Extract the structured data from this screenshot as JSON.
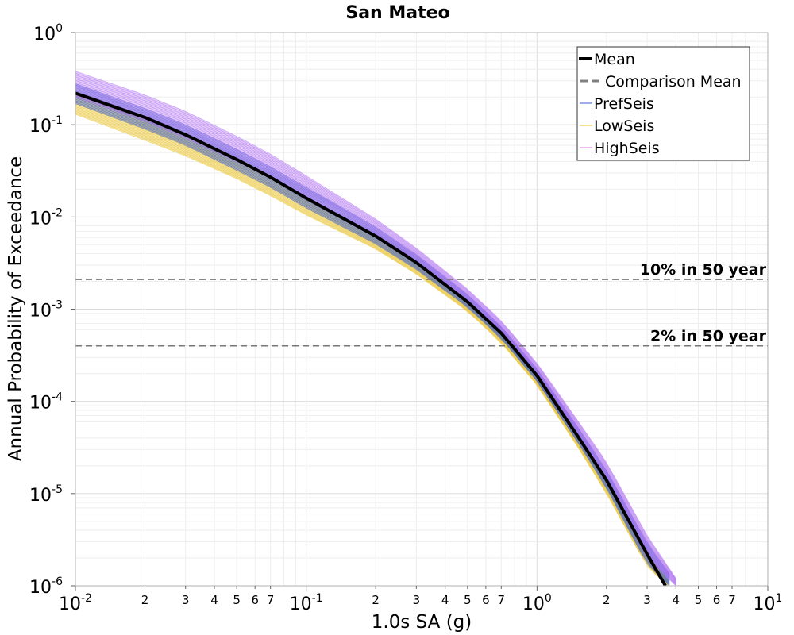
{
  "chart_data": {
    "type": "line",
    "title": "San Mateo",
    "xlabel": "1.0s SA (g)",
    "ylabel": "Annual Probability of Exceedance",
    "xscale": "log",
    "yscale": "log",
    "xlim": [
      0.01,
      10
    ],
    "ylim": [
      1e-06,
      1
    ],
    "grid": true,
    "legend_position": "top-right",
    "x_major_ticks": [
      {
        "value": 0.01,
        "base": "10",
        "exp": "-2"
      },
      {
        "value": 0.1,
        "base": "10",
        "exp": "-1"
      },
      {
        "value": 1,
        "base": "10",
        "exp": "0"
      },
      {
        "value": 10,
        "base": "10",
        "exp": "1"
      }
    ],
    "x_minor_labels": [
      "2",
      "3",
      "4",
      "5",
      "6",
      "7"
    ],
    "y_major_ticks": [
      {
        "value": 1,
        "base": "10",
        "exp": "0"
      },
      {
        "value": 0.1,
        "base": "10",
        "exp": "-1"
      },
      {
        "value": 0.01,
        "base": "10",
        "exp": "-2"
      },
      {
        "value": 0.001,
        "base": "10",
        "exp": "-3"
      },
      {
        "value": 0.0001,
        "base": "10",
        "exp": "-4"
      },
      {
        "value": 1e-05,
        "base": "10",
        "exp": "-5"
      },
      {
        "value": 1e-06,
        "base": "10",
        "exp": "-6"
      }
    ],
    "mean": {
      "name": "Mean",
      "color": "#000000",
      "x": [
        0.01,
        0.02,
        0.03,
        0.05,
        0.07,
        0.1,
        0.2,
        0.3,
        0.5,
        0.7,
        1.0,
        1.5,
        2.0,
        3.0,
        3.6
      ],
      "y": [
        0.22,
        0.12,
        0.078,
        0.042,
        0.027,
        0.016,
        0.0062,
        0.0032,
        0.0012,
        0.00055,
        0.00019,
        4.2e-05,
        1.4e-05,
        2.2e-06,
        1e-06
      ]
    },
    "comparison_mean": {
      "name": "Comparison Mean",
      "color": "#808080",
      "dash": true
    },
    "branch_bands": [
      {
        "name": "PrefSeis",
        "color": "#3a5fd0",
        "x": [
          0.01,
          0.02,
          0.03,
          0.05,
          0.07,
          0.1,
          0.2,
          0.3,
          0.5,
          0.7,
          1.0,
          1.5,
          2.0,
          3.0,
          3.75
        ],
        "lower": [
          0.17,
          0.09,
          0.06,
          0.032,
          0.021,
          0.0125,
          0.0051,
          0.0027,
          0.00105,
          0.00048,
          0.000165,
          3.6e-05,
          1.15e-05,
          1.7e-06,
          1e-06
        ],
        "upper": [
          0.28,
          0.15,
          0.1,
          0.054,
          0.035,
          0.021,
          0.0078,
          0.0039,
          0.00145,
          0.00065,
          0.000225,
          5.3e-05,
          1.8e-05,
          2.9e-06,
          1.35e-06
        ]
      },
      {
        "name": "LowSeis",
        "color": "#e8c020",
        "x": [
          0.01,
          0.02,
          0.03,
          0.05,
          0.07,
          0.1,
          0.2,
          0.3,
          0.5,
          0.7,
          1.0,
          1.5,
          2.0,
          3.0,
          3.7
        ],
        "lower": [
          0.13,
          0.068,
          0.046,
          0.026,
          0.017,
          0.0105,
          0.0045,
          0.0024,
          0.00095,
          0.00043,
          0.00015,
          3.2e-05,
          1e-05,
          1.6e-06,
          1e-06
        ],
        "upper": [
          0.22,
          0.115,
          0.075,
          0.04,
          0.027,
          0.016,
          0.0062,
          0.0032,
          0.0012,
          0.00055,
          0.00019,
          4.3e-05,
          1.45e-05,
          2.3e-06,
          1.15e-06
        ]
      },
      {
        "name": "HighSeis",
        "color": "#b070f0",
        "x": [
          0.01,
          0.02,
          0.03,
          0.05,
          0.07,
          0.1,
          0.2,
          0.3,
          0.5,
          0.7,
          1.0,
          1.5,
          2.0,
          3.0,
          4.0
        ],
        "lower": [
          0.2,
          0.11,
          0.072,
          0.04,
          0.026,
          0.0155,
          0.006,
          0.0031,
          0.00118,
          0.00054,
          0.000185,
          4.1e-05,
          1.35e-05,
          2e-06,
          1e-06
        ],
        "upper": [
          0.38,
          0.21,
          0.14,
          0.075,
          0.048,
          0.028,
          0.0095,
          0.0046,
          0.00165,
          0.00075,
          0.00026,
          6.2e-05,
          2.2e-05,
          3.5e-06,
          1.2e-06
        ]
      }
    ],
    "reference_lines": [
      {
        "label": "10% in 50 year",
        "y": 0.0021
      },
      {
        "label": "2% in 50 year",
        "y": 0.0004
      }
    ]
  }
}
